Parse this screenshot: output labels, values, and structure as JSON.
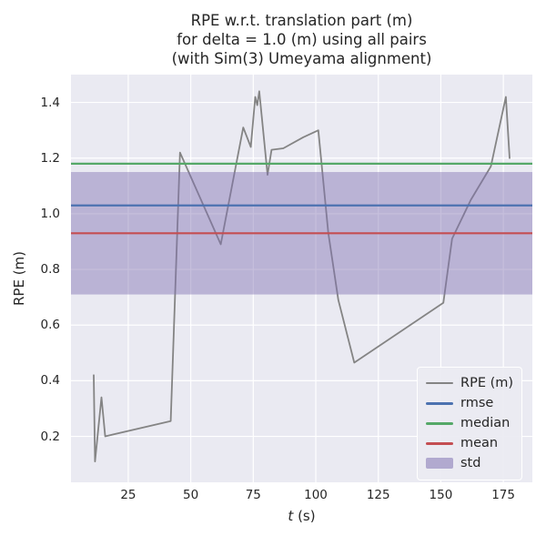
{
  "figure": {
    "background": "#ffffff",
    "axes_background": "#eaeaf2",
    "grid_color": "#ffffff",
    "text_color": "#262626"
  },
  "title": {
    "lines": [
      "RPE w.r.t. translation part (m)",
      "for delta = 1.0 (m) using all pairs",
      "(with Sim(3) Umeyama alignment)"
    ]
  },
  "chart_data": {
    "type": "line",
    "title": "RPE w.r.t. translation part (m)\nfor delta = 1.0 (m) using all pairs\n(with Sim(3) Umeyama alignment)",
    "xlabel": "t (s)",
    "ylabel": "RPE (m)",
    "xlim": [
      2.1,
      186.6
    ],
    "ylim": [
      0.035,
      1.5
    ],
    "xticks": [
      25,
      50,
      75,
      100,
      125,
      150,
      175
    ],
    "xtick_labels": [
      "25",
      "50",
      "75",
      "100",
      "125",
      "150",
      "175"
    ],
    "yticks": [
      0.2,
      0.4,
      0.6,
      0.8,
      1.0,
      1.2,
      1.4
    ],
    "ytick_labels": [
      "0.2",
      "0.4",
      "0.6",
      "0.8",
      "1.0",
      "1.2",
      "1.4"
    ],
    "grid": true,
    "legend_position": "lower right",
    "series": [
      {
        "name": "RPE (m)",
        "kind": "line",
        "color": "#848484",
        "width": 1.8,
        "x": [
          11.2,
          11.7,
          14.3,
          15.8,
          42.0,
          45.7,
          62.0,
          71.0,
          74.0,
          75.8,
          76.6,
          77.4,
          80.7,
          82.3,
          87.0,
          95.0,
          101.0,
          105.0,
          109.0,
          115.4,
          151.0,
          154.5,
          162.0,
          170.0,
          176.0,
          177.5
        ],
        "y": [
          0.42,
          0.11,
          0.34,
          0.2,
          0.255,
          1.22,
          0.89,
          1.31,
          1.24,
          1.42,
          1.39,
          1.44,
          1.14,
          1.23,
          1.235,
          1.275,
          1.3,
          0.93,
          0.69,
          0.465,
          0.68,
          0.91,
          1.05,
          1.17,
          1.42,
          1.2
        ]
      },
      {
        "name": "rmse",
        "kind": "hline",
        "color": "#4c72b0",
        "width": 2.2,
        "value": 1.03
      },
      {
        "name": "median",
        "kind": "hline",
        "color": "#55a868",
        "width": 2.2,
        "value": 1.18
      },
      {
        "name": "mean",
        "kind": "hline",
        "color": "#c44e52",
        "width": 2.2,
        "value": 0.93
      },
      {
        "name": "std",
        "kind": "band",
        "color": "#8172b2",
        "alpha": 0.45,
        "from": 0.71,
        "to": 1.15
      }
    ]
  }
}
